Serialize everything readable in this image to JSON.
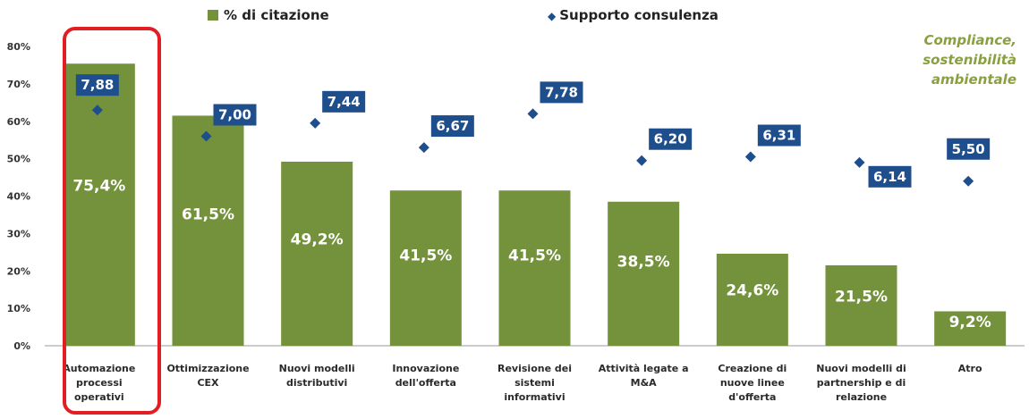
{
  "legend": {
    "bar_series": "% di citazione",
    "marker_series": "Supporto consulenza"
  },
  "note": "Compliance, sostenibilità ambientale",
  "colors": {
    "bar": "#74923b",
    "marker": "#1f4e8c",
    "label_box": "#1f4e8c",
    "highlight": "#e01e24",
    "note": "#8aa040"
  },
  "chart_data": {
    "type": "bar",
    "categories": [
      "Automazione processi operativi",
      "Ottimizzazione CEX",
      "Nuovi modelli distributivi",
      "Innovazione dell'offerta",
      "Revisione dei sistemi informativi",
      "Attività legate a M&A",
      "Creazione di nuove linee d'offerta",
      "Nuovi modelli di partnership e di relazione",
      "Atro"
    ],
    "category_lines": [
      [
        "Automazione",
        "processi",
        "operativi"
      ],
      [
        "Ottimizzazione",
        "CEX"
      ],
      [
        "Nuovi modelli",
        "distributivi"
      ],
      [
        "Innovazione",
        "dell'offerta"
      ],
      [
        "Revisione dei",
        "sistemi",
        "informativi"
      ],
      [
        "Attività legate a",
        "M&A"
      ],
      [
        "Creazione di",
        "nuove linee",
        "d'offerta"
      ],
      [
        "Nuovi modelli di",
        "partnership e di",
        "relazione"
      ],
      [
        "Atro"
      ]
    ],
    "series": [
      {
        "name": "% di citazione",
        "values": [
          75.4,
          61.5,
          49.2,
          41.5,
          41.5,
          38.5,
          24.6,
          21.5,
          9.2
        ],
        "labels": [
          "75,4%",
          "61,5%",
          "49,2%",
          "41,5%",
          "41,5%",
          "38,5%",
          "24,6%",
          "21,5%",
          "9,2%"
        ]
      },
      {
        "name": "Supporto consulenza",
        "values": [
          63,
          56,
          59.5,
          53,
          62,
          49.5,
          50.5,
          49,
          44
        ],
        "labels": [
          "7,88",
          "7,00",
          "7,44",
          "6,67",
          "7,78",
          "6,20",
          "6,31",
          "6,14",
          "5,50"
        ]
      }
    ],
    "yticks": [
      "0%",
      "10%",
      "20%",
      "30%",
      "40%",
      "50%",
      "60%",
      "70%",
      "80%"
    ],
    "ylim": [
      0,
      80
    ],
    "highlighted_category": "Automazione processi operativi"
  }
}
